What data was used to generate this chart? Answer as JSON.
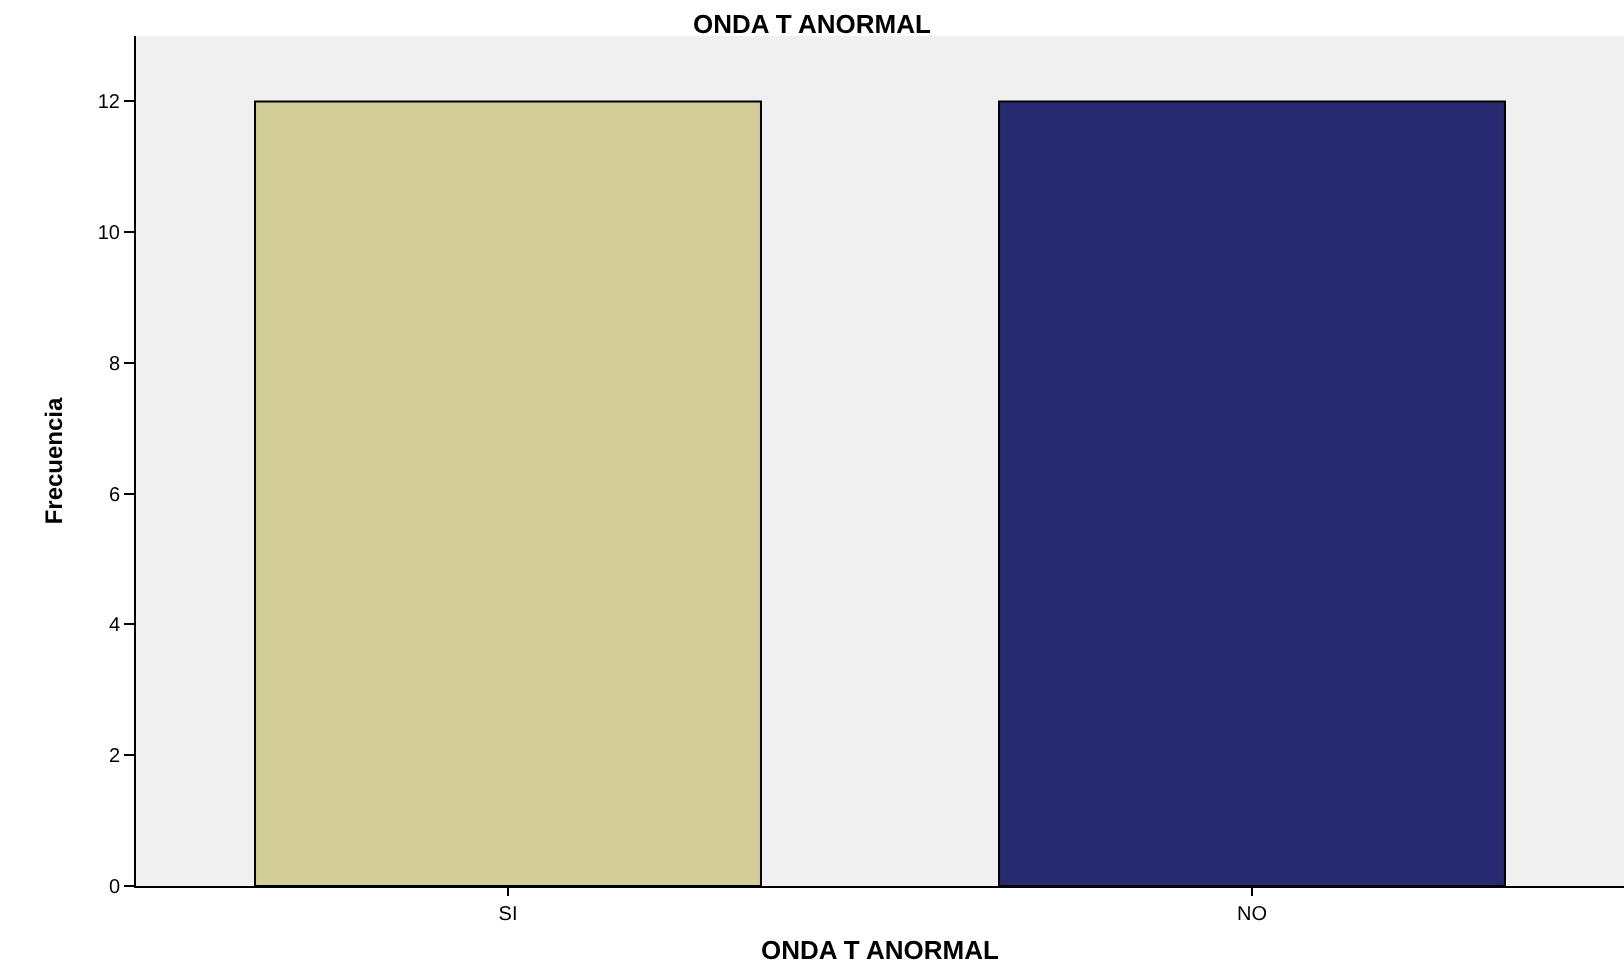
{
  "chart_data": {
    "type": "bar",
    "title": "ONDA T ANORMAL",
    "xlabel": "ONDA T ANORMAL",
    "ylabel": "Frecuencia",
    "categories": [
      "SI",
      "NO"
    ],
    "values": [
      12,
      12
    ],
    "colors": [
      "#d3ce97",
      "#272a70"
    ],
    "ylim": [
      0,
      13
    ],
    "yticks": [
      0,
      2,
      4,
      6,
      8,
      10,
      12
    ],
    "grid": false
  }
}
